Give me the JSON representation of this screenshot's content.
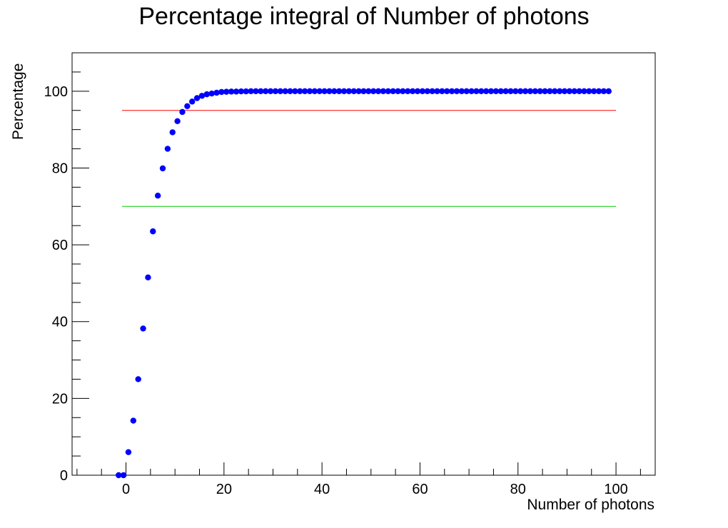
{
  "chart_data": {
    "type": "scatter",
    "title": "Percentage integral of Number of photons",
    "xlabel": "Number of photons",
    "ylabel": "Percentage",
    "xlim": [
      -11,
      108
    ],
    "ylim": [
      0,
      110
    ],
    "x_ticks": [
      0,
      20,
      40,
      60,
      80,
      100
    ],
    "y_ticks": [
      0,
      20,
      40,
      60,
      80,
      100
    ],
    "x_tick_labels": [
      "0",
      "20",
      "40",
      "60",
      "80",
      "100"
    ],
    "y_tick_labels": [
      "0",
      "20",
      "40",
      "60",
      "80",
      "100"
    ],
    "x_minor_step": 5,
    "y_minor_step": 5,
    "grid": false,
    "marker_color": "#0000ff",
    "series": [
      {
        "x": [
          -1.5,
          -0.5,
          0.5,
          1.5,
          2.5,
          3.5,
          4.5,
          5.5,
          6.5,
          7.5,
          8.5,
          9.5,
          10.5,
          11.5,
          12.5,
          13.5,
          14.5,
          15.5,
          16.5,
          17.5,
          18.5,
          19.5,
          20.5,
          21.5,
          22.5,
          23.5,
          24.5,
          25.5,
          26.5,
          27.5,
          28.5,
          29.5,
          30.5,
          31.5,
          32.5,
          33.5,
          34.5,
          35.5,
          36.5,
          37.5,
          38.5,
          39.5,
          40.5,
          41.5,
          42.5,
          43.5,
          44.5,
          45.5,
          46.5,
          47.5,
          48.5,
          49.5,
          50.5,
          51.5,
          52.5,
          53.5,
          54.5,
          55.5,
          56.5,
          57.5,
          58.5,
          59.5,
          60.5,
          61.5,
          62.5,
          63.5,
          64.5,
          65.5,
          66.5,
          67.5,
          68.5,
          69.5,
          70.5,
          71.5,
          72.5,
          73.5,
          74.5,
          75.5,
          76.5,
          77.5,
          78.5,
          79.5,
          80.5,
          81.5,
          82.5,
          83.5,
          84.5,
          85.5,
          86.5,
          87.5,
          88.5,
          89.5,
          90.5,
          91.5,
          92.5,
          93.5,
          94.5,
          95.5,
          96.5,
          97.5,
          98.5
        ],
        "y": [
          0,
          0,
          6,
          14.2,
          25,
          38.2,
          51.5,
          63.5,
          72.8,
          79.9,
          85,
          89.3,
          92.2,
          94.6,
          96.1,
          97.3,
          98.2,
          98.8,
          99.2,
          99.4,
          99.6,
          99.8,
          99.85,
          99.9,
          99.9,
          99.95,
          99.95,
          100,
          100,
          100,
          100,
          100,
          100,
          100,
          100,
          100,
          100,
          100,
          100,
          100,
          100,
          100,
          100,
          100,
          100,
          100,
          100,
          100,
          100,
          100,
          100,
          100,
          100,
          100,
          100,
          100,
          100,
          100,
          100,
          100,
          100,
          100,
          100,
          100,
          100,
          100,
          100,
          100,
          100,
          100,
          100,
          100,
          100,
          100,
          100,
          100,
          100,
          100,
          100,
          100,
          100,
          100,
          100,
          100,
          100,
          100,
          100,
          100,
          100,
          100,
          100,
          100,
          100,
          100,
          100,
          100,
          100,
          100,
          100,
          100,
          100
        ]
      }
    ],
    "reference_lines": [
      {
        "y": 95,
        "x_start": -0.8,
        "x_end": 100,
        "color": "#ff0000"
      },
      {
        "y": 70,
        "x_start": -0.8,
        "x_end": 100,
        "color": "#00cc00"
      }
    ]
  }
}
